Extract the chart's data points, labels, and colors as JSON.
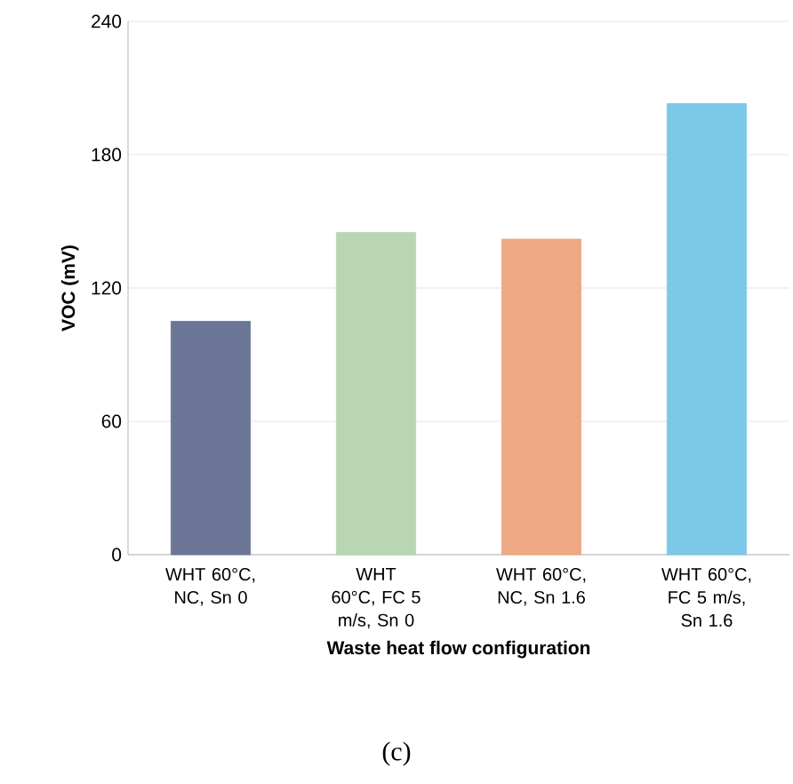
{
  "chart_data": {
    "type": "bar",
    "categories": [
      "WHT 60°C, NC, Sn 0",
      "WHT 60°C, FC 5 m/s, Sn 0",
      "WHT 60°C, NC, Sn 1.6",
      "WHT 60°C, FC 5 m/s, Sn 1.6"
    ],
    "values": [
      105,
      145,
      142,
      203
    ],
    "colors": [
      "#6b7696",
      "#b9d6b3",
      "#eea884",
      "#7cc8e8"
    ],
    "xlabel": "Waste heat flow configuration",
    "ylabel": "VOC (mV)",
    "ylim": [
      0,
      240
    ],
    "yticks": [
      0,
      60,
      120,
      180,
      240
    ],
    "grid": "y",
    "annotations": [
      "(c)"
    ]
  }
}
